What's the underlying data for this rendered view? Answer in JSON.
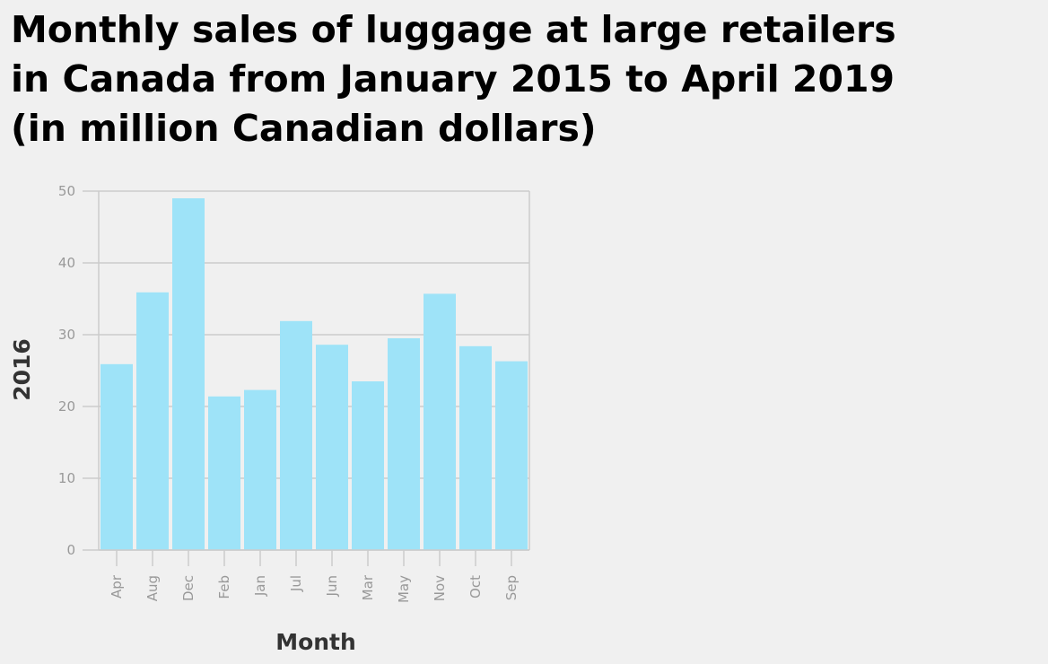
{
  "chart_data": {
    "type": "bar",
    "title": "Monthly sales of luggage at large retailers\nin Canada from January 2015 to April 2019\n(in million Canadian dollars)",
    "xlabel": "Month",
    "ylabel": "2016",
    "categories": [
      "Apr",
      "Aug",
      "Dec",
      "Feb",
      "Jan",
      "Jul",
      "Jun",
      "Mar",
      "May",
      "Nov",
      "Oct",
      "Sep"
    ],
    "values": [
      25.9,
      35.9,
      49.0,
      21.4,
      22.3,
      31.9,
      28.6,
      23.5,
      29.5,
      35.7,
      28.4,
      26.3
    ],
    "ylim": [
      0,
      50
    ],
    "yticks": [
      0,
      10,
      20,
      30,
      40,
      50
    ],
    "grid": true,
    "bar_color": "#9ee3f8",
    "grid_color": "#cccccc",
    "tick_color": "#999999"
  }
}
